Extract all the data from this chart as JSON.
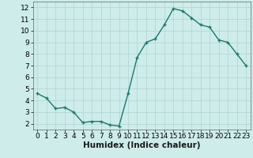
{
  "x": [
    0,
    1,
    2,
    3,
    4,
    5,
    6,
    7,
    8,
    9,
    10,
    11,
    12,
    13,
    14,
    15,
    16,
    17,
    18,
    19,
    20,
    21,
    22,
    23
  ],
  "y": [
    4.6,
    4.2,
    3.3,
    3.4,
    3.0,
    2.1,
    2.2,
    2.2,
    1.9,
    1.8,
    4.6,
    7.7,
    9.0,
    9.3,
    10.5,
    11.9,
    11.7,
    11.1,
    10.5,
    10.3,
    9.2,
    9.0,
    8.0,
    7.0
  ],
  "line_color": "#1a7a6e",
  "marker": "+",
  "bg_color": "#cdecea",
  "grid_color": "#aed4d2",
  "xlabel": "Humidex (Indice chaleur)",
  "xlim": [
    -0.5,
    23.5
  ],
  "ylim": [
    1.5,
    12.5
  ],
  "yticks": [
    2,
    3,
    4,
    5,
    6,
    7,
    8,
    9,
    10,
    11,
    12
  ],
  "xticks": [
    0,
    1,
    2,
    3,
    4,
    5,
    6,
    7,
    8,
    9,
    10,
    11,
    12,
    13,
    14,
    15,
    16,
    17,
    18,
    19,
    20,
    21,
    22,
    23
  ],
  "tick_label_fontsize": 6.5,
  "xlabel_fontsize": 7.5,
  "linewidth": 1.0,
  "markersize": 3.5,
  "markeredgewidth": 1.0
}
